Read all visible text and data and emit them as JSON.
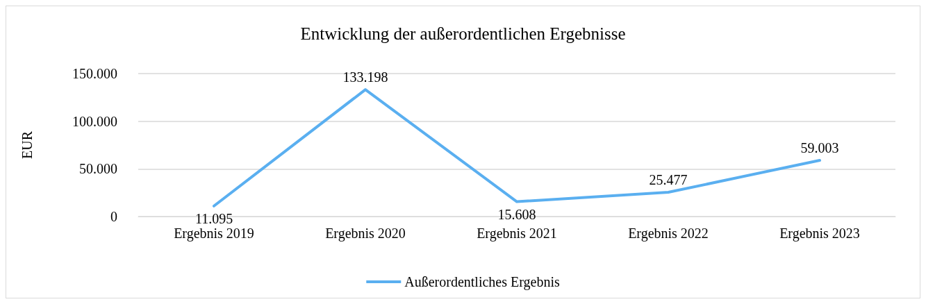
{
  "chart_data": {
    "type": "line",
    "title": "Entwicklung der außerordentlichen Ergebnisse",
    "ylabel": "EUR",
    "categories": [
      "Ergebnis 2019",
      "Ergebnis 2020",
      "Ergebnis 2021",
      "Ergebnis 2022",
      "Ergebnis 2023"
    ],
    "series": [
      {
        "name": "Außerordentliches Ergebnis",
        "color": "#5aaff0",
        "values": [
          11095,
          133198,
          15608,
          25477,
          59003
        ],
        "value_labels": [
          "11.095",
          "133.198",
          "15.608",
          "25.477",
          "59.003"
        ]
      }
    ],
    "ylim": [
      0,
      150000
    ],
    "yticks": [
      0,
      {
        "value": 50000,
        "label": "50.000"
      },
      {
        "value": 100000,
        "label": "100.000"
      },
      {
        "value": 150000,
        "label": "150.000"
      }
    ],
    "grid": "y",
    "legend": "bottom",
    "marker": "none",
    "line_style": "solid"
  }
}
